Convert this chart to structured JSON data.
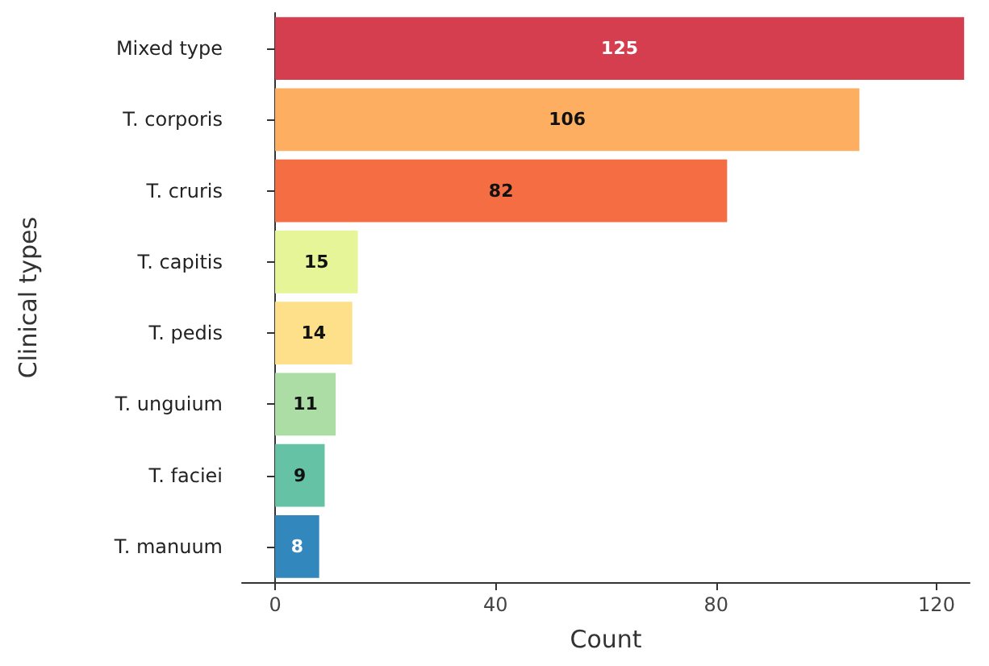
{
  "chart_data": {
    "type": "bar",
    "orientation": "horizontal",
    "xlabel": "Count",
    "ylabel": "Clinical types",
    "categories": [
      "Mixed type",
      "T. corporis",
      "T. cruris",
      "T. capitis",
      "T. pedis",
      "T. unguium",
      "T. faciei",
      "T. manuum"
    ],
    "values": [
      125,
      106,
      82,
      15,
      14,
      11,
      9,
      8
    ],
    "colors": [
      "#d53e4f",
      "#fdae61",
      "#f46d43",
      "#e6f598",
      "#fee08b",
      "#abdda4",
      "#66c2a5",
      "#3288bd"
    ],
    "xlim": [
      -6,
      126
    ],
    "xticks": [
      0,
      40,
      80,
      120
    ],
    "data_labels": true
  }
}
